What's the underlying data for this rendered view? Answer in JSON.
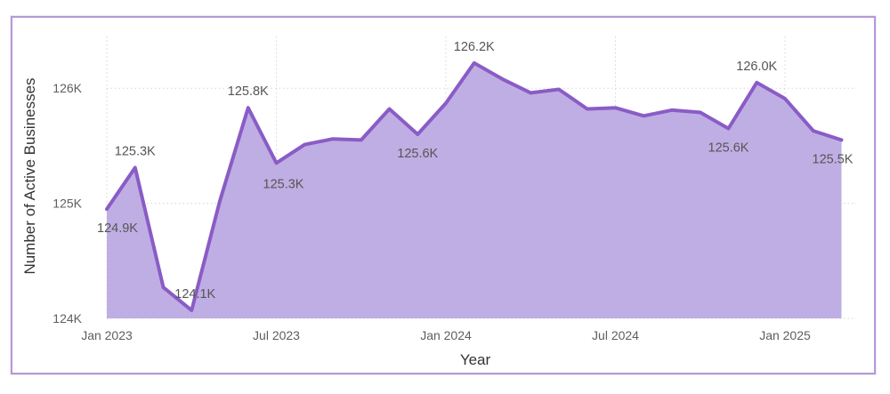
{
  "chart_data": {
    "type": "area",
    "title": "",
    "xlabel": "Year",
    "ylabel": "Number of Active Businesses",
    "ylim": [
      124000,
      126450
    ],
    "y_ticks": [
      124000,
      125000,
      126000
    ],
    "y_tick_labels": [
      "124K",
      "125K",
      "126K"
    ],
    "x_ticks": [
      "2023-01",
      "2023-07",
      "2024-01",
      "2024-07",
      "2025-01"
    ],
    "x_tick_labels": [
      "Jan 2023",
      "Jul 2023",
      "Jan 2024",
      "Jul 2024",
      "Jan 2025"
    ],
    "grid": true,
    "colors": {
      "line": "#8a5cc6",
      "fill": "#bfaee3"
    },
    "series": [
      {
        "x": [
          "2023-01",
          "2023-02",
          "2023-03",
          "2023-04",
          "2023-05",
          "2023-06",
          "2023-07",
          "2023-08",
          "2023-09",
          "2023-10",
          "2023-11",
          "2023-12",
          "2024-01",
          "2024-02",
          "2024-03",
          "2024-04",
          "2024-05",
          "2024-06",
          "2024-07",
          "2024-08",
          "2024-09",
          "2024-10",
          "2024-11",
          "2024-12",
          "2025-01",
          "2025-02",
          "2025-03"
        ],
        "values": [
          124950,
          125310,
          124270,
          124070,
          125020,
          125830,
          125350,
          125510,
          125560,
          125550,
          125820,
          125600,
          125870,
          126220,
          126080,
          125960,
          125990,
          125820,
          125830,
          125760,
          125810,
          125790,
          125650,
          126050,
          125910,
          125630,
          125550
        ]
      }
    ],
    "data_labels": [
      {
        "x": "2023-01",
        "text": "124.9K"
      },
      {
        "x": "2023-02",
        "text": "125.3K"
      },
      {
        "x": "2023-04",
        "text": "124.1K"
      },
      {
        "x": "2023-06",
        "text": "125.8K"
      },
      {
        "x": "2023-07",
        "text": "125.3K"
      },
      {
        "x": "2023-12",
        "text": "125.6K"
      },
      {
        "x": "2024-02",
        "text": "126.2K"
      },
      {
        "x": "2024-11",
        "text": "125.6K"
      },
      {
        "x": "2024-12",
        "text": "126.0K"
      },
      {
        "x": "2025-03",
        "text": "125.5K"
      }
    ]
  }
}
